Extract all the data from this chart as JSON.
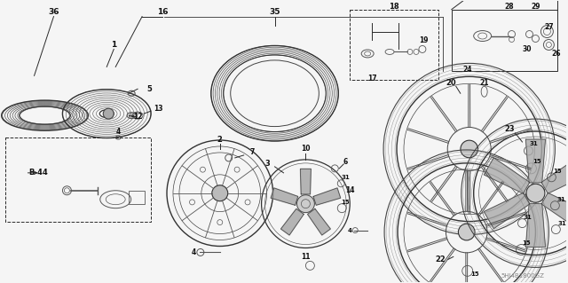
{
  "bg_color": "#f5f5f5",
  "line_color": "#2a2a2a",
  "watermark": "5HJ4B1800GZ",
  "figsize": [
    6.4,
    3.19
  ],
  "dpi": 100
}
